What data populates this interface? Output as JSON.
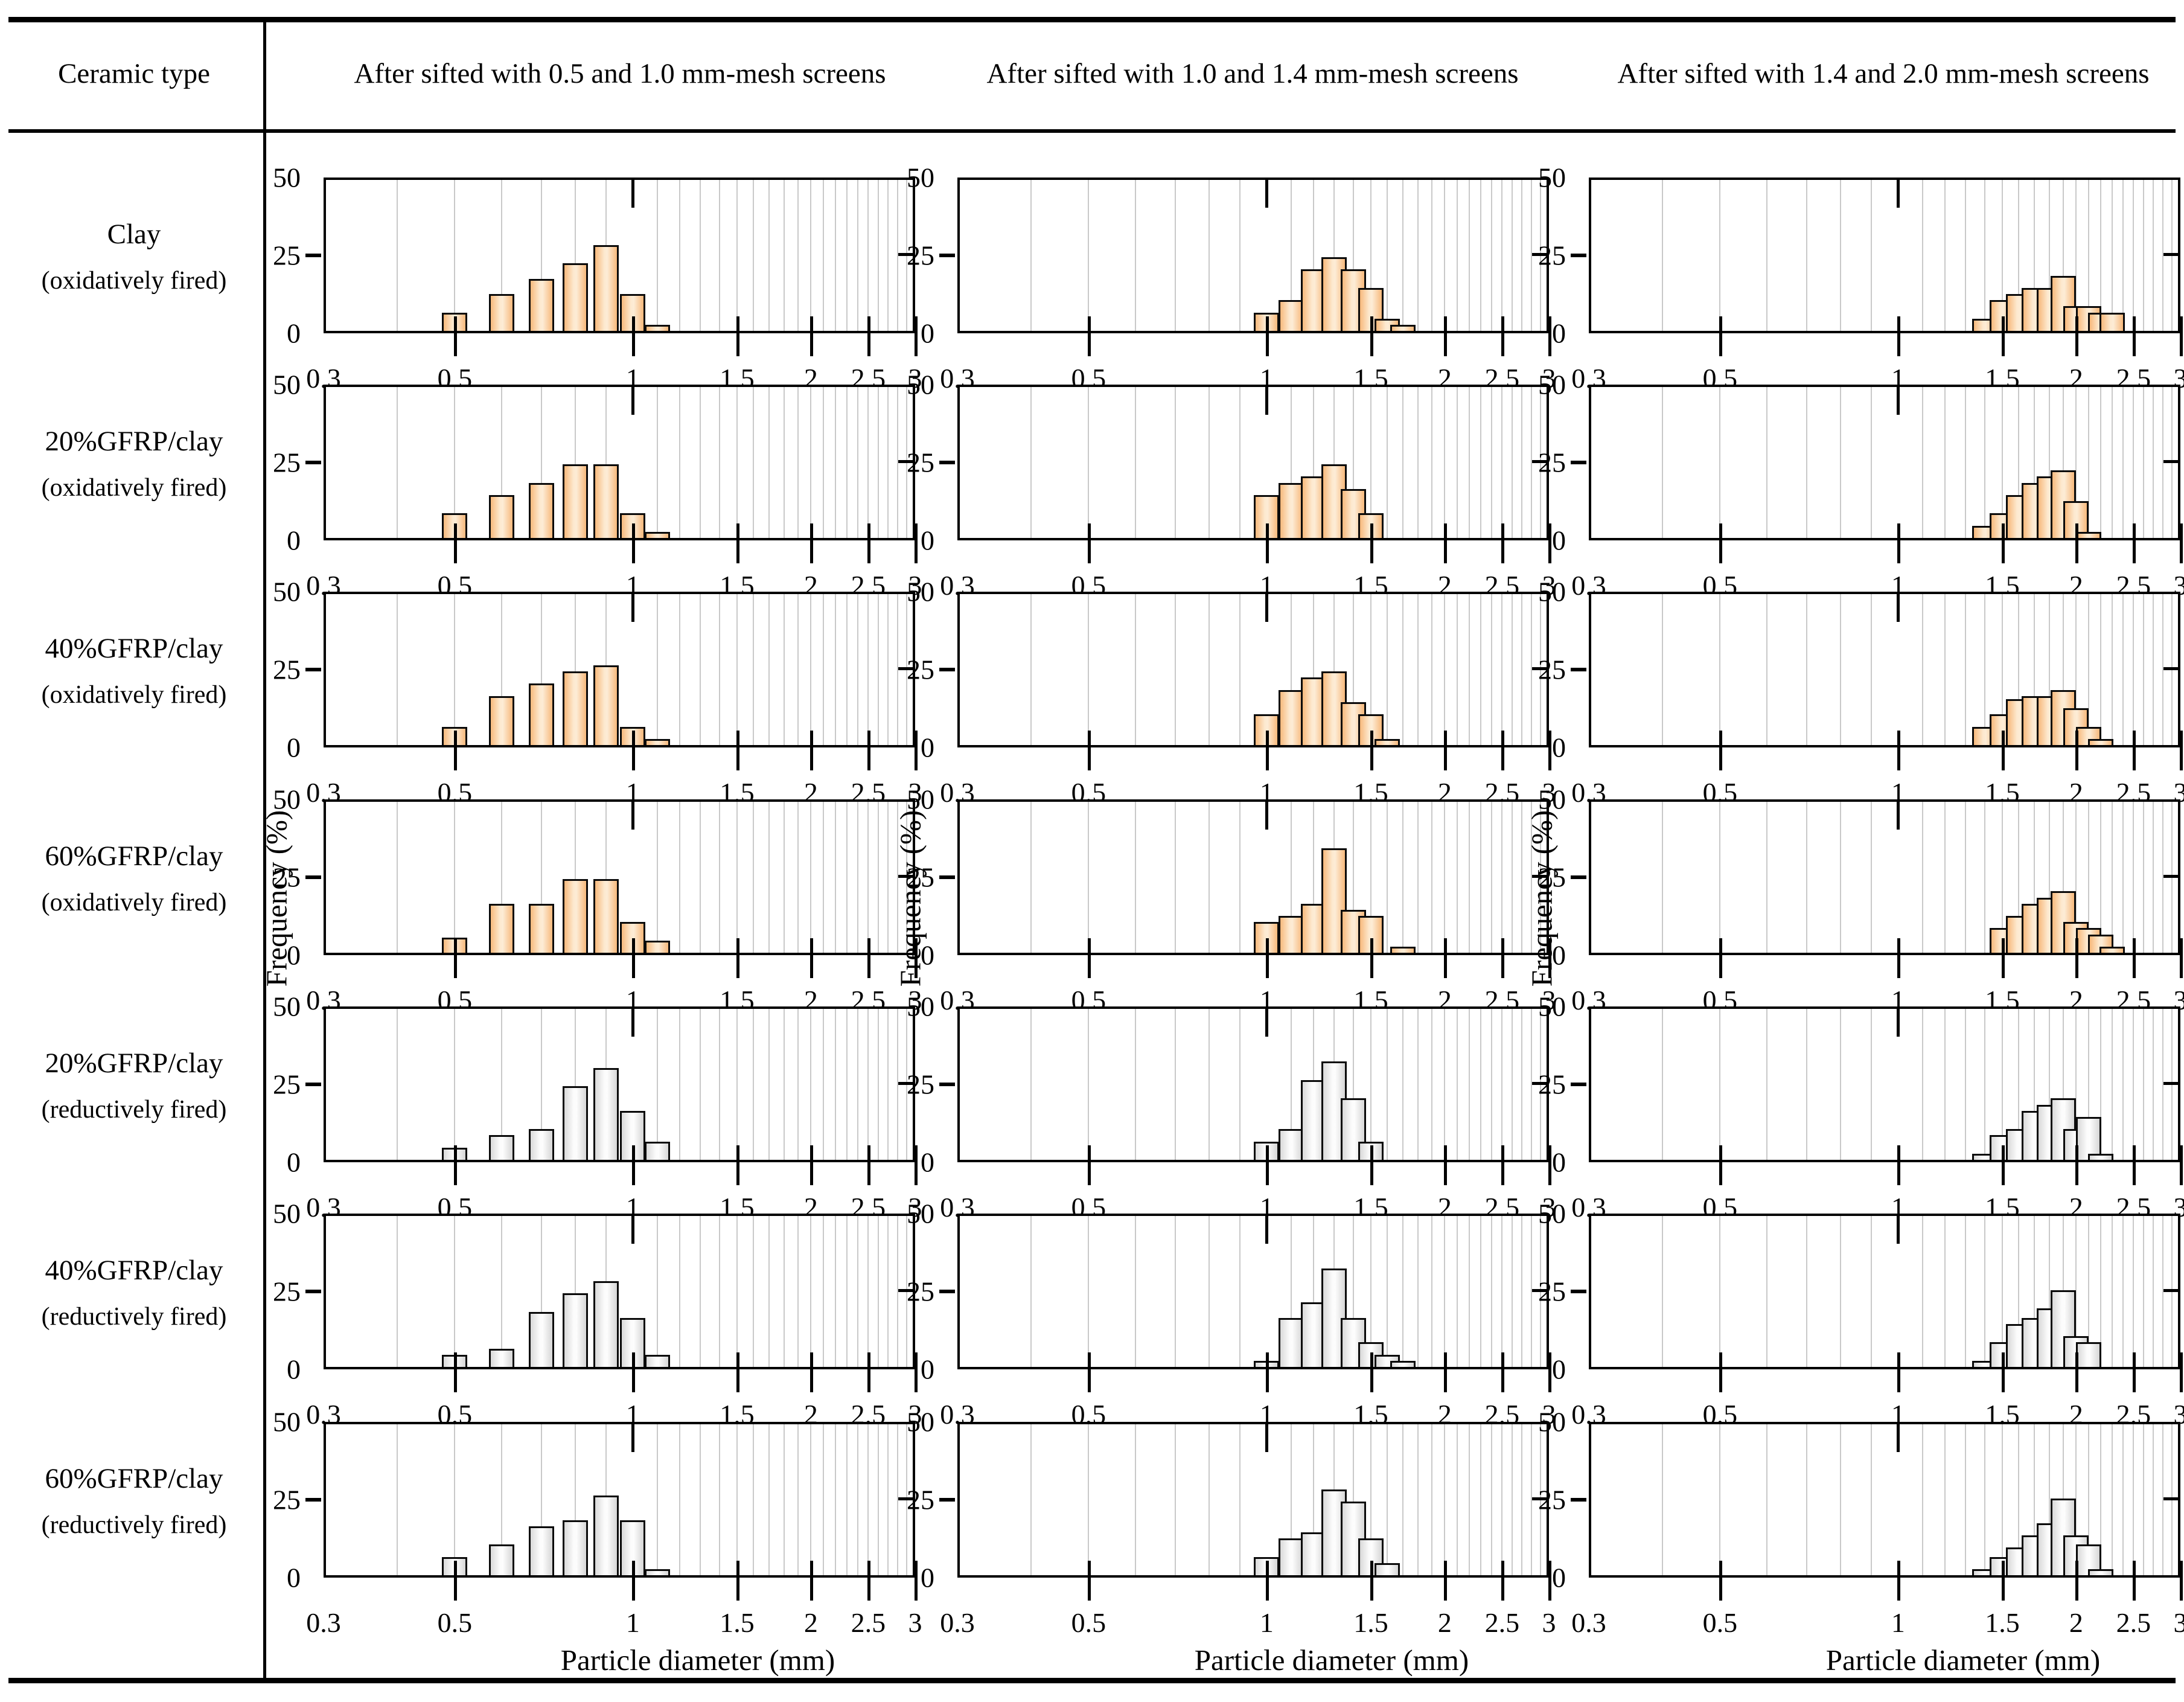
{
  "header": {
    "ceramic_type": "Ceramic type",
    "columns": [
      "After sifted with 0.5 and 1.0 mm-mesh screens",
      "After sifted with 1.0 and 1.4 mm-mesh screens",
      "After sifted with 1.4 and 2.0 mm-mesh screens"
    ]
  },
  "chart_data": {
    "type": "bar",
    "subtype": "histogram-grid",
    "x_axis": {
      "label": "Particle diameter (mm)",
      "scale": "log",
      "range": [
        0.3,
        3
      ],
      "tick_values": [
        0.3,
        0.5,
        1,
        1.5,
        2,
        2.5,
        3
      ],
      "tick_labels": [
        "0.3",
        "0.5",
        "1",
        "1.5",
        "2",
        "2.5",
        "3"
      ],
      "minor_gridline_step": 0.1,
      "grid": "on"
    },
    "y_axis": {
      "label": "Frequency (%)",
      "range": [
        0,
        50
      ],
      "tick_values": [
        0,
        25,
        50
      ],
      "tick_labels": [
        "0",
        "25",
        "50"
      ]
    },
    "colors": {
      "oxidative_bar": "#f7b97c",
      "oxidative_bar_highlight": "#fdecd6",
      "reductive_bar": "#d9d9d9",
      "reductive_bar_highlight": "#fdfdfd",
      "gridline": "#c9c9c9",
      "axis": "#000000"
    },
    "rows": [
      {
        "label": "Clay",
        "sublabel": "(oxidatively fired)",
        "fill": "ox",
        "histograms": [
          [
            {
              "d": 0.5,
              "f": 6
            },
            {
              "d": 0.6,
              "f": 12
            },
            {
              "d": 0.7,
              "f": 17
            },
            {
              "d": 0.8,
              "f": 22
            },
            {
              "d": 0.9,
              "f": 28
            },
            {
              "d": 1.0,
              "f": 12
            },
            {
              "d": 1.1,
              "f": 2
            }
          ],
          [
            {
              "d": 1.0,
              "f": 6
            },
            {
              "d": 1.1,
              "f": 10
            },
            {
              "d": 1.2,
              "f": 20
            },
            {
              "d": 1.3,
              "f": 24
            },
            {
              "d": 1.4,
              "f": 20
            },
            {
              "d": 1.5,
              "f": 14
            },
            {
              "d": 1.6,
              "f": 4
            },
            {
              "d": 1.7,
              "f": 2
            }
          ],
          [
            {
              "d": 1.4,
              "f": 4
            },
            {
              "d": 1.5,
              "f": 10
            },
            {
              "d": 1.6,
              "f": 12
            },
            {
              "d": 1.7,
              "f": 14
            },
            {
              "d": 1.8,
              "f": 14
            },
            {
              "d": 1.9,
              "f": 18
            },
            {
              "d": 2.0,
              "f": 8
            },
            {
              "d": 2.1,
              "f": 8
            },
            {
              "d": 2.2,
              "f": 6
            },
            {
              "d": 2.3,
              "f": 6
            }
          ]
        ]
      },
      {
        "label": "20%GFRP/clay",
        "sublabel": "(oxidatively fired)",
        "fill": "ox",
        "histograms": [
          [
            {
              "d": 0.5,
              "f": 8
            },
            {
              "d": 0.6,
              "f": 14
            },
            {
              "d": 0.7,
              "f": 18
            },
            {
              "d": 0.8,
              "f": 24
            },
            {
              "d": 0.9,
              "f": 24
            },
            {
              "d": 1.0,
              "f": 8
            },
            {
              "d": 1.1,
              "f": 2
            }
          ],
          [
            {
              "d": 1.0,
              "f": 14
            },
            {
              "d": 1.1,
              "f": 18
            },
            {
              "d": 1.2,
              "f": 20
            },
            {
              "d": 1.3,
              "f": 24
            },
            {
              "d": 1.4,
              "f": 16
            },
            {
              "d": 1.5,
              "f": 8
            }
          ],
          [
            {
              "d": 1.4,
              "f": 4
            },
            {
              "d": 1.5,
              "f": 8
            },
            {
              "d": 1.6,
              "f": 14
            },
            {
              "d": 1.7,
              "f": 18
            },
            {
              "d": 1.8,
              "f": 20
            },
            {
              "d": 1.9,
              "f": 22
            },
            {
              "d": 2.0,
              "f": 12
            },
            {
              "d": 2.1,
              "f": 2
            }
          ]
        ]
      },
      {
        "label": "40%GFRP/clay",
        "sublabel": "(oxidatively fired)",
        "fill": "ox",
        "histograms": [
          [
            {
              "d": 0.5,
              "f": 6
            },
            {
              "d": 0.6,
              "f": 16
            },
            {
              "d": 0.7,
              "f": 20
            },
            {
              "d": 0.8,
              "f": 24
            },
            {
              "d": 0.9,
              "f": 26
            },
            {
              "d": 1.0,
              "f": 6
            },
            {
              "d": 1.1,
              "f": 2
            }
          ],
          [
            {
              "d": 1.0,
              "f": 10
            },
            {
              "d": 1.1,
              "f": 18
            },
            {
              "d": 1.2,
              "f": 22
            },
            {
              "d": 1.3,
              "f": 24
            },
            {
              "d": 1.4,
              "f": 14
            },
            {
              "d": 1.5,
              "f": 10
            },
            {
              "d": 1.6,
              "f": 2
            }
          ],
          [
            {
              "d": 1.4,
              "f": 6
            },
            {
              "d": 1.5,
              "f": 10
            },
            {
              "d": 1.6,
              "f": 15
            },
            {
              "d": 1.7,
              "f": 16
            },
            {
              "d": 1.8,
              "f": 16
            },
            {
              "d": 1.9,
              "f": 18
            },
            {
              "d": 2.0,
              "f": 12
            },
            {
              "d": 2.1,
              "f": 6
            },
            {
              "d": 2.2,
              "f": 2
            }
          ]
        ]
      },
      {
        "label": "60%GFRP/clay",
        "sublabel": "(oxidatively fired)",
        "fill": "ox",
        "histograms": [
          [
            {
              "d": 0.5,
              "f": 5
            },
            {
              "d": 0.6,
              "f": 16
            },
            {
              "d": 0.7,
              "f": 16
            },
            {
              "d": 0.8,
              "f": 24
            },
            {
              "d": 0.9,
              "f": 24
            },
            {
              "d": 1.0,
              "f": 10
            },
            {
              "d": 1.1,
              "f": 4
            }
          ],
          [
            {
              "d": 1.0,
              "f": 10
            },
            {
              "d": 1.1,
              "f": 12
            },
            {
              "d": 1.2,
              "f": 16
            },
            {
              "d": 1.3,
              "f": 34
            },
            {
              "d": 1.4,
              "f": 14
            },
            {
              "d": 1.5,
              "f": 12
            },
            {
              "d": 1.7,
              "f": 2
            }
          ],
          [
            {
              "d": 1.5,
              "f": 8
            },
            {
              "d": 1.6,
              "f": 12
            },
            {
              "d": 1.7,
              "f": 16
            },
            {
              "d": 1.8,
              "f": 18
            },
            {
              "d": 1.9,
              "f": 20
            },
            {
              "d": 2.0,
              "f": 10
            },
            {
              "d": 2.1,
              "f": 8
            },
            {
              "d": 2.2,
              "f": 6
            },
            {
              "d": 2.3,
              "f": 2
            }
          ]
        ]
      },
      {
        "label": "20%GFRP/clay",
        "sublabel": "(reductively fired)",
        "fill": "red",
        "histograms": [
          [
            {
              "d": 0.5,
              "f": 4
            },
            {
              "d": 0.6,
              "f": 8
            },
            {
              "d": 0.7,
              "f": 10
            },
            {
              "d": 0.8,
              "f": 24
            },
            {
              "d": 0.9,
              "f": 30
            },
            {
              "d": 1.0,
              "f": 16
            },
            {
              "d": 1.1,
              "f": 6
            }
          ],
          [
            {
              "d": 1.0,
              "f": 6
            },
            {
              "d": 1.1,
              "f": 10
            },
            {
              "d": 1.2,
              "f": 26
            },
            {
              "d": 1.3,
              "f": 32
            },
            {
              "d": 1.4,
              "f": 20
            },
            {
              "d": 1.5,
              "f": 6
            }
          ],
          [
            {
              "d": 1.4,
              "f": 2
            },
            {
              "d": 1.5,
              "f": 8
            },
            {
              "d": 1.6,
              "f": 10
            },
            {
              "d": 1.7,
              "f": 16
            },
            {
              "d": 1.8,
              "f": 18
            },
            {
              "d": 1.9,
              "f": 20
            },
            {
              "d": 2.0,
              "f": 10
            },
            {
              "d": 2.1,
              "f": 14
            },
            {
              "d": 2.2,
              "f": 2
            }
          ]
        ]
      },
      {
        "label": "40%GFRP/clay",
        "sublabel": "(reductively fired)",
        "fill": "red",
        "histograms": [
          [
            {
              "d": 0.5,
              "f": 4
            },
            {
              "d": 0.6,
              "f": 6
            },
            {
              "d": 0.7,
              "f": 18
            },
            {
              "d": 0.8,
              "f": 24
            },
            {
              "d": 0.9,
              "f": 28
            },
            {
              "d": 1.0,
              "f": 16
            },
            {
              "d": 1.1,
              "f": 4
            }
          ],
          [
            {
              "d": 1.0,
              "f": 2
            },
            {
              "d": 1.1,
              "f": 16
            },
            {
              "d": 1.2,
              "f": 21
            },
            {
              "d": 1.3,
              "f": 32
            },
            {
              "d": 1.4,
              "f": 16
            },
            {
              "d": 1.5,
              "f": 8
            },
            {
              "d": 1.6,
              "f": 4
            },
            {
              "d": 1.7,
              "f": 2
            }
          ],
          [
            {
              "d": 1.4,
              "f": 2
            },
            {
              "d": 1.5,
              "f": 8
            },
            {
              "d": 1.6,
              "f": 14
            },
            {
              "d": 1.7,
              "f": 16
            },
            {
              "d": 1.8,
              "f": 19
            },
            {
              "d": 1.9,
              "f": 25
            },
            {
              "d": 2.0,
              "f": 10
            },
            {
              "d": 2.1,
              "f": 8
            }
          ]
        ]
      },
      {
        "label": "60%GFRP/clay",
        "sublabel": "(reductively fired)",
        "fill": "red",
        "histograms": [
          [
            {
              "d": 0.5,
              "f": 6
            },
            {
              "d": 0.6,
              "f": 10
            },
            {
              "d": 0.7,
              "f": 16
            },
            {
              "d": 0.8,
              "f": 18
            },
            {
              "d": 0.9,
              "f": 26
            },
            {
              "d": 1.0,
              "f": 18
            },
            {
              "d": 1.1,
              "f": 2
            }
          ],
          [
            {
              "d": 1.0,
              "f": 6
            },
            {
              "d": 1.1,
              "f": 12
            },
            {
              "d": 1.2,
              "f": 14
            },
            {
              "d": 1.3,
              "f": 28
            },
            {
              "d": 1.4,
              "f": 24
            },
            {
              "d": 1.5,
              "f": 12
            },
            {
              "d": 1.6,
              "f": 4
            }
          ],
          [
            {
              "d": 1.4,
              "f": 2
            },
            {
              "d": 1.5,
              "f": 6
            },
            {
              "d": 1.6,
              "f": 9
            },
            {
              "d": 1.7,
              "f": 13
            },
            {
              "d": 1.8,
              "f": 17
            },
            {
              "d": 1.9,
              "f": 25
            },
            {
              "d": 2.0,
              "f": 13
            },
            {
              "d": 2.1,
              "f": 10
            },
            {
              "d": 2.2,
              "f": 2
            }
          ]
        ]
      }
    ]
  }
}
